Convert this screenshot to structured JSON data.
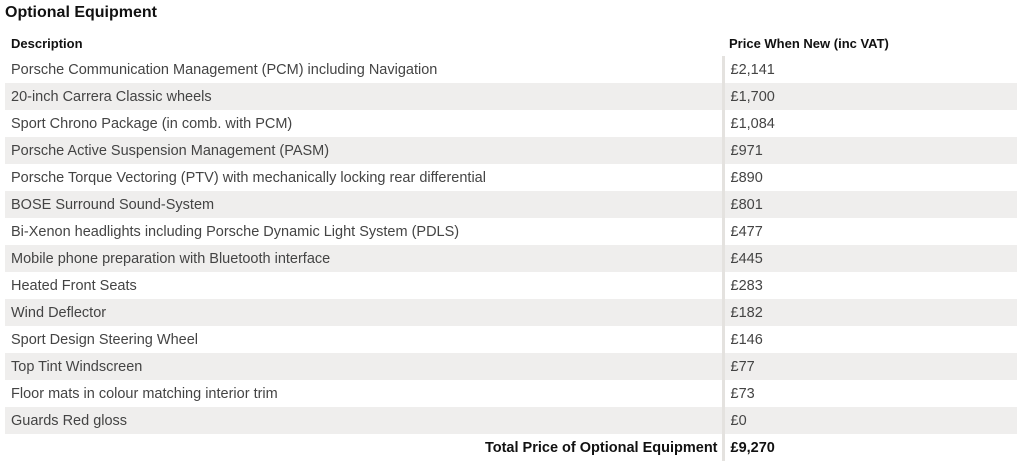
{
  "section": {
    "title": "Optional Equipment"
  },
  "table": {
    "headers": {
      "description": "Description",
      "price": "Price When New (inc VAT)"
    },
    "rows": [
      {
        "description": "Porsche Communication Management (PCM) including Navigation",
        "price": "£2,141"
      },
      {
        "description": "20-inch Carrera Classic wheels",
        "price": "£1,700"
      },
      {
        "description": "Sport Chrono Package (in comb. with PCM)",
        "price": "£1,084"
      },
      {
        "description": "Porsche Active Suspension Management (PASM)",
        "price": "£971"
      },
      {
        "description": "Porsche Torque Vectoring (PTV) with mechanically locking rear differential",
        "price": "£890"
      },
      {
        "description": "BOSE Surround Sound-System",
        "price": "£801"
      },
      {
        "description": "Bi-Xenon headlights including Porsche Dynamic Light System (PDLS)",
        "price": "£477"
      },
      {
        "description": "Mobile phone preparation with Bluetooth interface",
        "price": "£445"
      },
      {
        "description": "Heated Front Seats",
        "price": "£283"
      },
      {
        "description": "Wind Deflector",
        "price": "£182"
      },
      {
        "description": "Sport Design Steering Wheel",
        "price": "£146"
      },
      {
        "description": "Top Tint Windscreen",
        "price": "£77"
      },
      {
        "description": "Floor mats in colour matching interior trim",
        "price": "£73"
      },
      {
        "description": "Guards Red gloss",
        "price": "£0"
      }
    ],
    "total": {
      "label": "Total Price of Optional Equipment",
      "value": "£9,270"
    }
  },
  "colors": {
    "row_alt": "#efeeed",
    "divider": "#e4e2df",
    "text": "#444444",
    "heading": "#111111"
  }
}
